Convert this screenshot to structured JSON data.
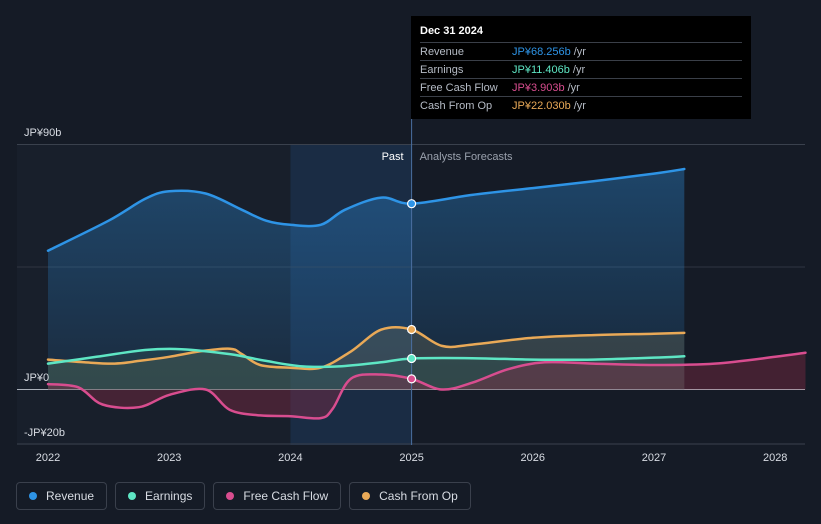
{
  "chart_data": {
    "type": "line",
    "x_range": [
      2021.78,
      2028.25
    ],
    "ylim": [
      -20,
      90
    ],
    "y_ticks": [
      {
        "value": 90,
        "label": "JP¥90b"
      },
      {
        "value": 0,
        "label": "JP¥0"
      },
      {
        "value": -20,
        "label": "-JP¥20b"
      }
    ],
    "x_ticks": [
      "2022",
      "2023",
      "2024",
      "2025",
      "2026",
      "2027",
      "2028"
    ],
    "divider_x": 2025.0,
    "past_label": "Past",
    "forecast_label": "Analysts Forecasts",
    "series": [
      {
        "name": "Revenue",
        "key": "revenue",
        "color": "#2e94e6",
        "fill": true,
        "points": [
          [
            2022.0,
            51
          ],
          [
            2022.5,
            62
          ],
          [
            2022.8,
            70
          ],
          [
            2023.0,
            72.8
          ],
          [
            2023.3,
            72
          ],
          [
            2023.6,
            66
          ],
          [
            2023.8,
            62
          ],
          [
            2024.0,
            60.5
          ],
          [
            2024.25,
            60.5
          ],
          [
            2024.45,
            66
          ],
          [
            2024.75,
            70.5
          ],
          [
            2025.0,
            68.256
          ],
          [
            2025.5,
            71.5
          ],
          [
            2026.0,
            74
          ],
          [
            2026.5,
            76.5
          ],
          [
            2027.0,
            79.3
          ],
          [
            2027.25,
            81
          ]
        ]
      },
      {
        "name": "Earnings",
        "key": "earnings",
        "color": "#5ee6c4",
        "fill": false,
        "points": [
          [
            2022.0,
            9.5
          ],
          [
            2022.4,
            12
          ],
          [
            2022.8,
            14.5
          ],
          [
            2023.1,
            14.8
          ],
          [
            2023.5,
            13
          ],
          [
            2023.8,
            10.5
          ],
          [
            2024.1,
            8.5
          ],
          [
            2024.4,
            8.5
          ],
          [
            2024.75,
            10
          ],
          [
            2025.0,
            11.406
          ],
          [
            2025.5,
            11.5
          ],
          [
            2026.0,
            11
          ],
          [
            2026.5,
            11
          ],
          [
            2027.0,
            11.7
          ],
          [
            2027.25,
            12.2
          ]
        ]
      },
      {
        "name": "Free Cash Flow",
        "key": "fcf",
        "color": "#d84d8f",
        "fill": false,
        "points": [
          [
            2022.0,
            2
          ],
          [
            2022.25,
            0.8
          ],
          [
            2022.45,
            -5.5
          ],
          [
            2022.75,
            -6.5
          ],
          [
            2023.0,
            -2
          ],
          [
            2023.3,
            0
          ],
          [
            2023.5,
            -7.5
          ],
          [
            2023.75,
            -9.5
          ],
          [
            2024.0,
            -9.8
          ],
          [
            2024.25,
            -10.5
          ],
          [
            2024.35,
            -7
          ],
          [
            2024.5,
            4
          ],
          [
            2024.75,
            5.5
          ],
          [
            2025.0,
            3.903
          ],
          [
            2025.25,
            0
          ],
          [
            2025.5,
            2.5
          ],
          [
            2025.8,
            7.5
          ],
          [
            2026.1,
            10
          ],
          [
            2026.5,
            9.5
          ],
          [
            2027.0,
            9
          ],
          [
            2027.5,
            9.5
          ],
          [
            2028.0,
            12
          ],
          [
            2028.25,
            13.5
          ]
        ]
      },
      {
        "name": "Cash From Op",
        "key": "cfo",
        "color": "#e9a957",
        "fill": true,
        "points": [
          [
            2022.0,
            11
          ],
          [
            2022.3,
            10
          ],
          [
            2022.55,
            9.5
          ],
          [
            2022.75,
            10.5
          ],
          [
            2023.0,
            12
          ],
          [
            2023.25,
            14
          ],
          [
            2023.5,
            15
          ],
          [
            2023.6,
            13
          ],
          [
            2023.75,
            9
          ],
          [
            2024.0,
            8
          ],
          [
            2024.25,
            8
          ],
          [
            2024.5,
            14
          ],
          [
            2024.75,
            22
          ],
          [
            2025.0,
            22.03
          ],
          [
            2025.25,
            16
          ],
          [
            2025.5,
            16.5
          ],
          [
            2026.0,
            19
          ],
          [
            2026.5,
            20
          ],
          [
            2027.0,
            20.5
          ],
          [
            2027.25,
            20.8
          ]
        ]
      }
    ]
  },
  "tooltip": {
    "date": "Dec 31 2024",
    "rows": [
      {
        "label": "Revenue",
        "value": "JP¥68.256b",
        "unit": "/yr",
        "color": "#2e94e6"
      },
      {
        "label": "Earnings",
        "value": "JP¥11.406b",
        "unit": "/yr",
        "color": "#5ee6c4"
      },
      {
        "label": "Free Cash Flow",
        "value": "JP¥3.903b",
        "unit": "/yr",
        "color": "#d84d8f"
      },
      {
        "label": "Cash From Op",
        "value": "JP¥22.030b",
        "unit": "/yr",
        "color": "#e9a957"
      }
    ]
  },
  "legend": [
    {
      "label": "Revenue",
      "color": "#2e94e6"
    },
    {
      "label": "Earnings",
      "color": "#5ee6c4"
    },
    {
      "label": "Free Cash Flow",
      "color": "#d84d8f"
    },
    {
      "label": "Cash From Op",
      "color": "#e9a957"
    }
  ]
}
